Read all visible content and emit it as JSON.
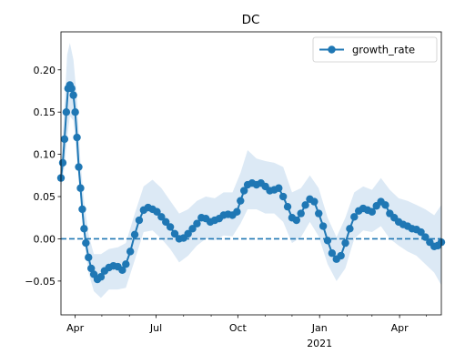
{
  "chart_data": {
    "type": "line",
    "title": "DC",
    "xlabel": "",
    "ylabel": "",
    "x_range": [
      "2020-03-16",
      "2021-05-18"
    ],
    "ylim": [
      -0.09,
      0.245
    ],
    "y_ticks": [
      -0.05,
      0.0,
      0.05,
      0.1,
      0.15,
      0.2
    ],
    "y_tick_labels": [
      "−0.05",
      "0.00",
      "0.05",
      "0.10",
      "0.15",
      "0.20"
    ],
    "x_ticks": [
      {
        "date": "2020-04-01",
        "label": "Apr",
        "sublabel": ""
      },
      {
        "date": "2020-07-01",
        "label": "Jul",
        "sublabel": ""
      },
      {
        "date": "2020-10-01",
        "label": "Oct",
        "sublabel": ""
      },
      {
        "date": "2021-01-01",
        "label": "Jan",
        "sublabel": "2021"
      },
      {
        "date": "2021-04-01",
        "label": "Apr",
        "sublabel": ""
      }
    ],
    "minor_x_ticks": [
      "2020-05-01",
      "2020-06-01",
      "2020-08-01",
      "2020-09-01",
      "2020-11-01",
      "2020-12-01",
      "2021-02-01",
      "2021-03-01",
      "2021-05-01"
    ],
    "grid": false,
    "legend": {
      "position": "top-right",
      "entries": [
        "growth_rate"
      ]
    },
    "reference_line": {
      "y": 0.0,
      "style": "dashed"
    },
    "colors": {
      "line": "#1f77b4",
      "band": "#dce9f5"
    },
    "series": [
      {
        "name": "growth_rate",
        "marker": "circle",
        "points": [
          [
            "2020-03-16",
            0.072
          ],
          [
            "2020-03-18",
            0.09
          ],
          [
            "2020-03-20",
            0.118
          ],
          [
            "2020-03-22",
            0.15
          ],
          [
            "2020-03-24",
            0.178
          ],
          [
            "2020-03-26",
            0.182
          ],
          [
            "2020-03-28",
            0.178
          ],
          [
            "2020-03-30",
            0.17
          ],
          [
            "2020-04-01",
            0.15
          ],
          [
            "2020-04-03",
            0.12
          ],
          [
            "2020-04-05",
            0.085
          ],
          [
            "2020-04-07",
            0.06
          ],
          [
            "2020-04-09",
            0.035
          ],
          [
            "2020-04-11",
            0.012
          ],
          [
            "2020-04-13",
            -0.005
          ],
          [
            "2020-04-16",
            -0.022
          ],
          [
            "2020-04-19",
            -0.035
          ],
          [
            "2020-04-22",
            -0.042
          ],
          [
            "2020-04-26",
            -0.048
          ],
          [
            "2020-04-30",
            -0.045
          ],
          [
            "2020-05-04",
            -0.038
          ],
          [
            "2020-05-09",
            -0.034
          ],
          [
            "2020-05-14",
            -0.032
          ],
          [
            "2020-05-19",
            -0.033
          ],
          [
            "2020-05-24",
            -0.037
          ],
          [
            "2020-05-28",
            -0.03
          ],
          [
            "2020-06-02",
            -0.015
          ],
          [
            "2020-06-07",
            0.005
          ],
          [
            "2020-06-12",
            0.022
          ],
          [
            "2020-06-17",
            0.034
          ],
          [
            "2020-06-22",
            0.037
          ],
          [
            "2020-06-27",
            0.035
          ],
          [
            "2020-07-02",
            0.032
          ],
          [
            "2020-07-07",
            0.026
          ],
          [
            "2020-07-12",
            0.02
          ],
          [
            "2020-07-17",
            0.014
          ],
          [
            "2020-07-22",
            0.006
          ],
          [
            "2020-07-27",
            0.0
          ],
          [
            "2020-08-01",
            0.001
          ],
          [
            "2020-08-06",
            0.006
          ],
          [
            "2020-08-11",
            0.012
          ],
          [
            "2020-08-16",
            0.018
          ],
          [
            "2020-08-21",
            0.025
          ],
          [
            "2020-08-26",
            0.024
          ],
          [
            "2020-08-31",
            0.02
          ],
          [
            "2020-09-05",
            0.022
          ],
          [
            "2020-09-10",
            0.024
          ],
          [
            "2020-09-15",
            0.028
          ],
          [
            "2020-09-20",
            0.029
          ],
          [
            "2020-09-25",
            0.028
          ],
          [
            "2020-09-30",
            0.032
          ],
          [
            "2020-10-04",
            0.045
          ],
          [
            "2020-10-08",
            0.057
          ],
          [
            "2020-10-12",
            0.064
          ],
          [
            "2020-10-17",
            0.066
          ],
          [
            "2020-10-22",
            0.064
          ],
          [
            "2020-10-27",
            0.066
          ],
          [
            "2020-11-01",
            0.062
          ],
          [
            "2020-11-06",
            0.057
          ],
          [
            "2020-11-11",
            0.058
          ],
          [
            "2020-11-16",
            0.06
          ],
          [
            "2020-11-21",
            0.05
          ],
          [
            "2020-11-26",
            0.038
          ],
          [
            "2020-12-01",
            0.025
          ],
          [
            "2020-12-06",
            0.022
          ],
          [
            "2020-12-11",
            0.03
          ],
          [
            "2020-12-16",
            0.04
          ],
          [
            "2020-12-21",
            0.047
          ],
          [
            "2020-12-26",
            0.044
          ],
          [
            "2020-12-31",
            0.03
          ],
          [
            "2021-01-05",
            0.015
          ],
          [
            "2021-01-10",
            -0.002
          ],
          [
            "2021-01-15",
            -0.017
          ],
          [
            "2021-01-20",
            -0.024
          ],
          [
            "2021-01-25",
            -0.02
          ],
          [
            "2021-01-30",
            -0.005
          ],
          [
            "2021-02-04",
            0.012
          ],
          [
            "2021-02-09",
            0.026
          ],
          [
            "2021-02-14",
            0.033
          ],
          [
            "2021-02-19",
            0.036
          ],
          [
            "2021-02-24",
            0.034
          ],
          [
            "2021-03-01",
            0.032
          ],
          [
            "2021-03-06",
            0.039
          ],
          [
            "2021-03-11",
            0.044
          ],
          [
            "2021-03-16",
            0.04
          ],
          [
            "2021-03-21",
            0.03
          ],
          [
            "2021-03-26",
            0.025
          ],
          [
            "2021-03-31",
            0.02
          ],
          [
            "2021-04-05",
            0.017
          ],
          [
            "2021-04-10",
            0.015
          ],
          [
            "2021-04-15",
            0.012
          ],
          [
            "2021-04-20",
            0.011
          ],
          [
            "2021-04-25",
            0.008
          ],
          [
            "2021-04-30",
            0.002
          ],
          [
            "2021-05-05",
            -0.004
          ],
          [
            "2021-05-10",
            -0.009
          ],
          [
            "2021-05-14",
            -0.008
          ],
          [
            "2021-05-18",
            -0.004
          ]
        ],
        "band": [
          [
            "2020-03-16",
            0.06,
            0.085
          ],
          [
            "2020-03-20",
            0.085,
            0.16
          ],
          [
            "2020-03-23",
            0.12,
            0.218
          ],
          [
            "2020-03-26",
            0.145,
            0.232
          ],
          [
            "2020-03-30",
            0.14,
            0.212
          ],
          [
            "2020-04-03",
            0.095,
            0.165
          ],
          [
            "2020-04-07",
            0.045,
            0.09
          ],
          [
            "2020-04-11",
            0.0,
            0.045
          ],
          [
            "2020-04-16",
            -0.04,
            0.005
          ],
          [
            "2020-04-22",
            -0.062,
            -0.018
          ],
          [
            "2020-04-30",
            -0.07,
            -0.018
          ],
          [
            "2020-05-09",
            -0.06,
            -0.012
          ],
          [
            "2020-05-19",
            -0.06,
            -0.01
          ],
          [
            "2020-05-28",
            -0.058,
            -0.005
          ],
          [
            "2020-06-07",
            -0.025,
            0.03
          ],
          [
            "2020-06-17",
            0.008,
            0.062
          ],
          [
            "2020-06-27",
            0.01,
            0.07
          ],
          [
            "2020-07-07",
            0.0,
            0.06
          ],
          [
            "2020-07-17",
            -0.012,
            0.045
          ],
          [
            "2020-07-27",
            -0.028,
            0.03
          ],
          [
            "2020-08-06",
            -0.02,
            0.035
          ],
          [
            "2020-08-16",
            -0.008,
            0.045
          ],
          [
            "2020-08-26",
            0.0,
            0.05
          ],
          [
            "2020-09-05",
            -0.002,
            0.048
          ],
          [
            "2020-09-15",
            0.004,
            0.055
          ],
          [
            "2020-09-25",
            0.003,
            0.055
          ],
          [
            "2020-10-04",
            0.018,
            0.078
          ],
          [
            "2020-10-12",
            0.035,
            0.105
          ],
          [
            "2020-10-22",
            0.035,
            0.095
          ],
          [
            "2020-11-01",
            0.03,
            0.092
          ],
          [
            "2020-11-11",
            0.03,
            0.09
          ],
          [
            "2020-11-21",
            0.02,
            0.085
          ],
          [
            "2020-12-01",
            -0.005,
            0.055
          ],
          [
            "2020-12-11",
            0.002,
            0.06
          ],
          [
            "2020-12-21",
            0.02,
            0.075
          ],
          [
            "2020-12-31",
            0.003,
            0.06
          ],
          [
            "2021-01-10",
            -0.03,
            0.025
          ],
          [
            "2021-01-20",
            -0.05,
            0.002
          ],
          [
            "2021-01-30",
            -0.035,
            0.025
          ],
          [
            "2021-02-09",
            0.0,
            0.055
          ],
          [
            "2021-02-19",
            0.01,
            0.062
          ],
          [
            "2021-03-01",
            0.008,
            0.058
          ],
          [
            "2021-03-11",
            0.015,
            0.072
          ],
          [
            "2021-03-21",
            0.0,
            0.058
          ],
          [
            "2021-03-31",
            -0.008,
            0.048
          ],
          [
            "2021-04-10",
            -0.015,
            0.045
          ],
          [
            "2021-04-20",
            -0.02,
            0.04
          ],
          [
            "2021-04-30",
            -0.03,
            0.035
          ],
          [
            "2021-05-10",
            -0.04,
            0.028
          ],
          [
            "2021-05-18",
            -0.055,
            0.04
          ]
        ]
      }
    ]
  }
}
